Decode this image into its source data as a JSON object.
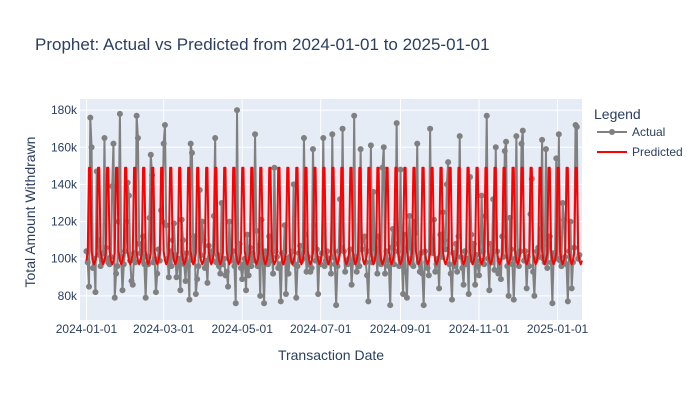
{
  "chart_data": {
    "type": "line",
    "title": "Prophet: Actual vs Predicted from 2024-01-01 to 2025-01-01",
    "xlabel": "Transaction Date",
    "ylabel": "Total Amount Withdrawn",
    "legend": {
      "title": "Legend",
      "placement": "right"
    },
    "x_range": [
      "2023-12-27",
      "2025-01-20"
    ],
    "ylim": [
      67000,
      186000
    ],
    "x_ticks": [
      "2024-01-01",
      "2024-03-01",
      "2024-05-01",
      "2024-07-01",
      "2024-09-01",
      "2024-11-01",
      "2025-01-01"
    ],
    "y_ticks": [
      80000,
      100000,
      120000,
      140000,
      160000,
      180000
    ],
    "y_tick_labels": [
      "80k",
      "100k",
      "120k",
      "140k",
      "160k",
      "180k"
    ],
    "grid": true,
    "colors": {
      "actual": "#808080",
      "predicted": "#ff0000",
      "plot_bg": "#e5ecf6"
    },
    "series": [
      {
        "name": "Actual",
        "mode": "lines+markers",
        "x_start": "2024-01-01",
        "step_days": 1,
        "values": [
          104000,
          98000,
          85000,
          176000,
          160000,
          95000,
          100000,
          82000,
          147000,
          110000,
          102000,
          96000,
          99000,
          103000,
          165000,
          106000,
          100000,
          98000,
          97000,
          101000,
          139000,
          162000,
          79000,
          92000,
          96000,
          120000,
          178000,
          101000,
          83000,
          97000,
          104000,
          120000,
          141000,
          134000,
          99000,
          88000,
          86000,
          103000,
          98000,
          177000,
          165000,
          108000,
          103000,
          99000,
          112000,
          97000,
          79000,
          101000,
          97000,
          122000,
          156000,
          145000,
          98000,
          100000,
          82000,
          92000,
          105000,
          99000,
          126000,
          120000,
          162000,
          172000,
          118000,
          100000,
          90000,
          104000,
          96000,
          110000,
          119000,
          102000,
          90000,
          97000,
          100000,
          83000,
          121000,
          110000,
          97000,
          88000,
          103000,
          96000,
          78000,
          162000,
          157000,
          99000,
          112000,
          81000,
          89000,
          96000,
          137000,
          102000,
          120000,
          110000,
          95000,
          99000,
          87000,
          107000,
          101000,
          104000,
          99000,
          123000,
          165000,
          98000,
          102000,
          96000,
          92000,
          130000,
          97000,
          100000,
          91000,
          93000,
          85000,
          120000,
          102000,
          99000,
          104000,
          96000,
          76000,
          180000,
          100000,
          108000,
          95000,
          89000,
          97000,
          100000,
          83000,
          113000,
          91000,
          106000,
          96000,
          103000,
          99000,
          167000,
          115000,
          96000,
          107000,
          80000,
          121000,
          98000,
          76000,
          104000,
          98000,
          97000,
          112000,
          99000,
          104000,
          92000,
          149000,
          104000,
          101000,
          95000,
          97000,
          77000,
          103000,
          98000,
          118000,
          81000,
          100000,
          92000,
          101000,
          99000,
          104000,
          140000,
          97000,
          79000,
          96000,
          103000,
          107000,
          99000,
          100000,
          165000,
          113000,
          93000,
          101000,
          97000,
          93000,
          95000,
          159000,
          118000,
          99000,
          105000,
          81000,
          100000,
          97000,
          103000,
          165000,
          96000,
          99000,
          104000,
          98000,
          100000,
          92000,
          167000,
          101000,
          97000,
          75000,
          96000,
          104000,
          132000,
          106000,
          170000,
          104000,
          93000,
          99000,
          97000,
          100000,
          105000,
          86000,
          98000,
          177000,
          101000,
          93000,
          100000,
          96000,
          159000,
          105000,
          111000,
          112000,
          98000,
          91000,
          77000,
          104000,
          161000,
          98000,
          136000,
          100000,
          105000,
          92000,
          112000,
          99000,
          97000,
          149000,
          160000,
          92000,
          104000,
          99000,
          96000,
          75000,
          106000,
          116000,
          97000,
          108000,
          173000,
          104000,
          96000,
          148000,
          100000,
          81000,
          113000,
          93000,
          79000,
          106000,
          123000,
          100000,
          97000,
          96000,
          120000,
          114000,
          162000,
          98000,
          93000,
          103000,
          92000,
          75000,
          104000,
          98000,
          95000,
          91000,
          170000,
          105000,
          103000,
          121000,
          93000,
          97000,
          100000,
          84000,
          113000,
          101000,
          125000,
          110000,
          105000,
          140000,
          152000,
          97000,
          92000,
          78000,
          103000,
          96000,
          108000,
          93000,
          112000,
          166000,
          101000,
          95000,
          86000,
          104000,
          97000,
          100000,
          81000,
          144000,
          113000,
          99000,
          108000,
          86000,
          102000,
          96000,
          91000,
          99000,
          134000,
          104000,
          97000,
          123000,
          177000,
          100000,
          83000,
          108000,
          98000,
          132000,
          94000,
          160000,
          104000,
          92000,
          99000,
          89000,
          112000,
          101000,
          158000,
          163000,
          96000,
          80000,
          122000,
          105000,
          97000,
          78000,
          100000,
          166000,
          103000,
          96000,
          104000,
          162000,
          169000,
          99000,
          104000,
          84000,
          101000,
          96000,
          124000,
          143000,
          93000,
          80000,
          99000,
          104000,
          106000,
          101000,
          116000,
          164000,
          100000,
          98000,
          159000,
          95000,
          107000,
          112000,
          98000,
          76000,
          103000,
          101000,
          154000,
          100000,
          167000,
          99000,
          96000,
          130000,
          121000,
          101000,
          97000,
          77000,
          104000,
          120000,
          84000,
          98000,
          106000,
          172000,
          171000,
          100000,
          102000
        ]
      },
      {
        "name": "Predicted",
        "mode": "lines",
        "x_start": "2024-01-01",
        "step_days": 1,
        "weekly_pattern": [
          99000,
          103000,
          149000,
          149000,
          104000,
          99000,
          97000
        ]
      }
    ]
  }
}
